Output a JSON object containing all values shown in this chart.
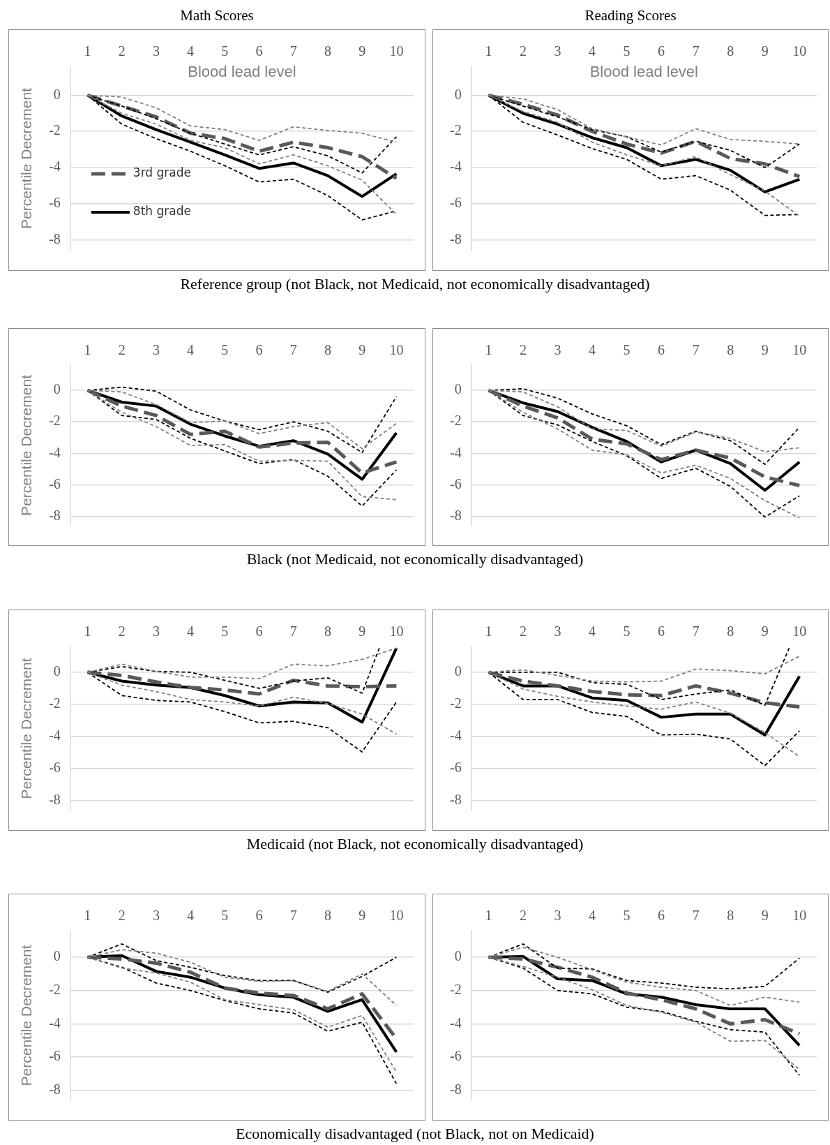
{
  "chart_data": [
    {
      "type": "line",
      "title": "Math Scores",
      "xlabel": "Blood lead level",
      "ylabel": "Percentile Decrement",
      "annotations": [
        "Reference group (not Black, not Medicaid, not economically disadvantaged)"
      ],
      "x": [
        1,
        2,
        3,
        4,
        5,
        6,
        7,
        8,
        9,
        10
      ],
      "xlim": [
        0.5,
        10.5
      ],
      "xticks": [
        1,
        2,
        3,
        4,
        5,
        6,
        7,
        8,
        9,
        10
      ],
      "ylim": [
        -8.6,
        1.6
      ],
      "yticks": [
        0,
        -2,
        -4,
        -6,
        -8
      ],
      "grid": "y",
      "legend": "bottom left",
      "series": [
        {
          "color": "#808080",
          "line_style": "dotted",
          "values": [
            0,
            -0.1,
            -0.7,
            -1.7,
            -1.9,
            -2.5,
            -1.75,
            -1.95,
            -2.1,
            -2.6
          ]
        },
        {
          "color": "#808080",
          "line_style": "dotted",
          "values": [
            0,
            -1.0,
            -1.6,
            -2.5,
            -2.9,
            -3.8,
            -3.3,
            -3.9,
            -4.7,
            -6.6
          ]
        },
        {
          "color": "#000000",
          "line_style": "dotted",
          "values": [
            0,
            -0.6,
            -1.3,
            -2.1,
            -2.7,
            -3.3,
            -2.85,
            -3.35,
            -4.3,
            -2.3
          ]
        },
        {
          "color": "#000000",
          "line_style": "dotted",
          "values": [
            0,
            -1.6,
            -2.4,
            -3.1,
            -3.9,
            -4.8,
            -4.65,
            -5.55,
            -6.9,
            -6.4
          ]
        },
        {
          "name": "3rd grade",
          "color": "#595959",
          "line_style": "dashed",
          "values": [
            0,
            -0.6,
            -1.2,
            -2.1,
            -2.4,
            -3.1,
            -2.6,
            -2.9,
            -3.4,
            -4.6
          ]
        },
        {
          "name": "8th grade",
          "color": "#000000",
          "line_style": "solid",
          "values": [
            0,
            -1.15,
            -1.9,
            -2.6,
            -3.3,
            -4.05,
            -3.75,
            -4.45,
            -5.6,
            -4.35
          ]
        }
      ]
    },
    {
      "type": "line",
      "title": "Reading Scores",
      "xlabel": "Blood lead level",
      "x": [
        1,
        2,
        3,
        4,
        5,
        6,
        7,
        8,
        9,
        10
      ],
      "xlim": [
        0.5,
        10.5
      ],
      "xticks": [
        1,
        2,
        3,
        4,
        5,
        6,
        7,
        8,
        9,
        10
      ],
      "ylim": [
        -8.6,
        1.6
      ],
      "yticks": [
        0,
        -2,
        -4,
        -6,
        -8
      ],
      "grid": "y",
      "series": [
        {
          "color": "#808080",
          "line_style": "dotted",
          "values": [
            0,
            -0.2,
            -0.8,
            -1.85,
            -2.3,
            -2.75,
            -1.85,
            -2.45,
            -2.55,
            -2.7
          ]
        },
        {
          "color": "#808080",
          "line_style": "dotted",
          "values": [
            0,
            -0.9,
            -1.5,
            -2.6,
            -3.3,
            -3.9,
            -3.4,
            -4.4,
            -5.3,
            -6.7
          ]
        },
        {
          "color": "#000000",
          "line_style": "dotted",
          "values": [
            0,
            -0.6,
            -1.2,
            -1.9,
            -2.3,
            -3.15,
            -2.55,
            -3.05,
            -4.0,
            -2.7
          ]
        },
        {
          "color": "#000000",
          "line_style": "dotted",
          "values": [
            0,
            -1.5,
            -2.2,
            -2.95,
            -3.55,
            -4.65,
            -4.45,
            -5.25,
            -6.65,
            -6.6
          ]
        },
        {
          "color": "#595959",
          "line_style": "dashed",
          "values": [
            0,
            -0.5,
            -1.1,
            -2.0,
            -2.7,
            -3.2,
            -2.55,
            -3.5,
            -3.8,
            -4.5
          ]
        },
        {
          "color": "#000000",
          "line_style": "solid",
          "values": [
            0,
            -1.0,
            -1.6,
            -2.35,
            -2.9,
            -3.9,
            -3.55,
            -4.15,
            -5.35,
            -4.65
          ]
        }
      ]
    },
    {
      "type": "line",
      "ylabel": "Percentile Decrement",
      "annotations": [
        "Black (not Medicaid, not economically disadvantaged)"
      ],
      "x": [
        1,
        2,
        3,
        4,
        5,
        6,
        7,
        8,
        9,
        10
      ],
      "xlim": [
        0.5,
        10.5
      ],
      "xticks": [
        1,
        2,
        3,
        4,
        5,
        6,
        7,
        8,
        9,
        10
      ],
      "ylim": [
        -8.6,
        1.6
      ],
      "yticks": [
        0,
        -2,
        -4,
        -6,
        -8
      ],
      "grid": "y",
      "series": [
        {
          "color": "#808080",
          "line_style": "dotted",
          "values": [
            0,
            -0.1,
            -0.9,
            -2.05,
            -1.95,
            -2.75,
            -2.3,
            -2.05,
            -3.7,
            -2.1
          ]
        },
        {
          "color": "#808080",
          "line_style": "dotted",
          "values": [
            0,
            -1.4,
            -2.3,
            -3.5,
            -3.45,
            -4.5,
            -4.45,
            -4.5,
            -6.75,
            -6.95
          ]
        },
        {
          "color": "#000000",
          "line_style": "dotted",
          "values": [
            0,
            0.2,
            -0.05,
            -1.25,
            -1.95,
            -2.5,
            -2.0,
            -2.6,
            -3.95,
            -0.4
          ]
        },
        {
          "color": "#000000",
          "line_style": "dotted",
          "values": [
            0,
            -1.6,
            -1.85,
            -3.05,
            -3.85,
            -4.65,
            -4.4,
            -5.45,
            -7.35,
            -5.05
          ]
        },
        {
          "color": "#595959",
          "line_style": "dashed",
          "values": [
            0,
            -1.0,
            -1.6,
            -2.8,
            -2.6,
            -3.6,
            -3.35,
            -3.3,
            -5.25,
            -4.55
          ]
        },
        {
          "color": "#000000",
          "line_style": "solid",
          "values": [
            0,
            -0.75,
            -1.0,
            -2.15,
            -2.9,
            -3.55,
            -3.2,
            -4.05,
            -5.65,
            -2.7
          ]
        }
      ]
    },
    {
      "type": "line",
      "x": [
        1,
        2,
        3,
        4,
        5,
        6,
        7,
        8,
        9,
        10
      ],
      "xlim": [
        0.5,
        10.5
      ],
      "xticks": [
        1,
        2,
        3,
        4,
        5,
        6,
        7,
        8,
        9,
        10
      ],
      "ylim": [
        -8.6,
        1.6
      ],
      "yticks": [
        0,
        -2,
        -4,
        -6,
        -8
      ],
      "grid": "y",
      "series": [
        {
          "color": "#808080",
          "line_style": "dotted",
          "values": [
            0,
            -0.1,
            -1.05,
            -2.45,
            -2.55,
            -3.55,
            -2.65,
            -3.05,
            -3.9,
            -3.65
          ]
        },
        {
          "color": "#808080",
          "line_style": "dotted",
          "values": [
            0,
            -1.4,
            -2.45,
            -3.8,
            -4.1,
            -5.25,
            -4.75,
            -5.6,
            -7.0,
            -8.1
          ]
        },
        {
          "color": "#000000",
          "line_style": "dotted",
          "values": [
            0,
            0.1,
            -0.5,
            -1.5,
            -2.25,
            -3.45,
            -2.6,
            -3.2,
            -4.7,
            -2.35
          ]
        },
        {
          "color": "#000000",
          "line_style": "dotted",
          "values": [
            0,
            -1.6,
            -2.2,
            -3.25,
            -4.15,
            -5.6,
            -4.95,
            -6.1,
            -8.05,
            -6.7
          ]
        },
        {
          "color": "#595959",
          "line_style": "dashed",
          "values": [
            0,
            -1.0,
            -1.75,
            -3.1,
            -3.4,
            -4.4,
            -3.8,
            -4.3,
            -5.5,
            -6.05
          ]
        },
        {
          "color": "#000000",
          "line_style": "solid",
          "values": [
            0,
            -0.8,
            -1.35,
            -2.35,
            -3.25,
            -4.55,
            -3.8,
            -4.65,
            -6.35,
            -4.55
          ]
        }
      ]
    },
    {
      "type": "line",
      "ylabel": "Percentile Decrement",
      "annotations": [
        "Medicaid (not Black, not economically disadvantaged)"
      ],
      "x": [
        1,
        2,
        3,
        4,
        5,
        6,
        7,
        8,
        9,
        10
      ],
      "xlim": [
        0.5,
        10.5
      ],
      "xticks": [
        1,
        2,
        3,
        4,
        5,
        6,
        7,
        8,
        9,
        10
      ],
      "ylim": [
        -8.6,
        1.6
      ],
      "yticks": [
        0,
        -2,
        -4,
        -6,
        -8
      ],
      "grid": "y",
      "series": [
        {
          "color": "#808080",
          "line_style": "dotted",
          "values": [
            0,
            0.5,
            0.05,
            -0.3,
            -0.3,
            -0.4,
            0.5,
            0.4,
            0.8,
            1.5
          ]
        },
        {
          "color": "#808080",
          "line_style": "dotted",
          "values": [
            0,
            -0.8,
            -1.2,
            -1.7,
            -1.85,
            -2.1,
            -1.55,
            -1.95,
            -2.6,
            -3.85
          ]
        },
        {
          "color": "#000000",
          "line_style": "dotted",
          "x": [
            1,
            2,
            3,
            4,
            5,
            6,
            7,
            8,
            9,
            9.5
          ],
          "values": [
            0,
            0.35,
            0.05,
            0.0,
            -0.5,
            -1.0,
            -0.55,
            -0.35,
            -1.3,
            1.5
          ]
        },
        {
          "color": "#000000",
          "line_style": "dotted",
          "values": [
            0,
            -1.45,
            -1.75,
            -1.85,
            -2.45,
            -3.15,
            -3.05,
            -3.45,
            -4.95,
            -1.85
          ]
        },
        {
          "color": "#595959",
          "line_style": "dashed",
          "values": [
            0,
            -0.2,
            -0.6,
            -0.95,
            -1.1,
            -1.35,
            -0.5,
            -0.85,
            -0.9,
            -0.85
          ]
        },
        {
          "color": "#000000",
          "line_style": "solid",
          "values": [
            0,
            -0.55,
            -0.8,
            -0.95,
            -1.45,
            -2.1,
            -1.85,
            -1.9,
            -3.1,
            1.5
          ]
        }
      ]
    },
    {
      "type": "line",
      "x": [
        1,
        2,
        3,
        4,
        5,
        6,
        7,
        8,
        9,
        10
      ],
      "xlim": [
        0.5,
        10.5
      ],
      "xticks": [
        1,
        2,
        3,
        4,
        5,
        6,
        7,
        8,
        9,
        10
      ],
      "ylim": [
        -8.6,
        1.6
      ],
      "yticks": [
        0,
        -2,
        -4,
        -6,
        -8
      ],
      "grid": "y",
      "series": [
        {
          "color": "#808080",
          "line_style": "dotted",
          "values": [
            0,
            0.15,
            -0.2,
            -0.55,
            -0.6,
            -0.55,
            0.2,
            0.1,
            -0.1,
            1.0
          ]
        },
        {
          "color": "#808080",
          "line_style": "dotted",
          "values": [
            0,
            -1.05,
            -1.5,
            -1.85,
            -2.1,
            -2.3,
            -1.85,
            -2.55,
            -3.75,
            -5.25
          ]
        },
        {
          "color": "#000000",
          "line_style": "dotted",
          "x": [
            1,
            2,
            3,
            4,
            5,
            6,
            7,
            8,
            9,
            9.7
          ],
          "values": [
            0,
            0.0,
            0.0,
            -0.65,
            -0.75,
            -1.7,
            -1.35,
            -1.1,
            -2.05,
            1.5
          ]
        },
        {
          "color": "#000000",
          "line_style": "dotted",
          "values": [
            0,
            -1.7,
            -1.7,
            -2.5,
            -2.75,
            -3.9,
            -3.85,
            -4.15,
            -5.8,
            -3.65
          ]
        },
        {
          "color": "#595959",
          "line_style": "dashed",
          "values": [
            0,
            -0.55,
            -0.85,
            -1.2,
            -1.4,
            -1.45,
            -0.85,
            -1.3,
            -1.9,
            -2.15
          ]
        },
        {
          "color": "#000000",
          "line_style": "solid",
          "values": [
            0,
            -0.85,
            -0.85,
            -1.6,
            -1.75,
            -2.8,
            -2.6,
            -2.6,
            -3.9,
            -0.25
          ]
        }
      ]
    },
    {
      "type": "line",
      "ylabel": "Percentile Decrement",
      "annotations": [
        "Economically disadvantaged (not Black, not on Medicaid)"
      ],
      "x": [
        1,
        2,
        3,
        4,
        5,
        6,
        7,
        8,
        9,
        10
      ],
      "xlim": [
        0.5,
        10.5
      ],
      "xticks": [
        1,
        2,
        3,
        4,
        5,
        6,
        7,
        8,
        9,
        10
      ],
      "ylim": [
        -8.6,
        1.6
      ],
      "yticks": [
        0,
        -2,
        -4,
        -6,
        -8
      ],
      "grid": "y",
      "series": [
        {
          "color": "#808080",
          "line_style": "dotted",
          "values": [
            0,
            0.45,
            0.25,
            -0.3,
            -1.2,
            -1.45,
            -1.4,
            -2.05,
            -1.0,
            -2.9
          ]
        },
        {
          "color": "#808080",
          "line_style": "dotted",
          "values": [
            0,
            -0.65,
            -0.95,
            -1.5,
            -2.55,
            -2.85,
            -3.15,
            -4.2,
            -3.5,
            -6.9
          ]
        },
        {
          "color": "#000000",
          "line_style": "dotted",
          "values": [
            0,
            0.8,
            -0.2,
            -0.6,
            -1.1,
            -1.4,
            -1.4,
            -2.1,
            -1.15,
            0.0
          ]
        },
        {
          "color": "#000000",
          "line_style": "dotted",
          "values": [
            0,
            -0.6,
            -1.55,
            -2.0,
            -2.6,
            -3.1,
            -3.35,
            -4.45,
            -3.9,
            -7.6
          ]
        },
        {
          "color": "#595959",
          "line_style": "dashed",
          "values": [
            0,
            -0.1,
            -0.35,
            -0.9,
            -1.85,
            -2.15,
            -2.3,
            -3.1,
            -2.2,
            -4.9
          ]
        },
        {
          "color": "#000000",
          "line_style": "solid",
          "values": [
            0,
            0.1,
            -0.85,
            -1.2,
            -1.85,
            -2.25,
            -2.4,
            -3.25,
            -2.55,
            -5.7
          ]
        }
      ]
    },
    {
      "type": "line",
      "x": [
        1,
        2,
        3,
        4,
        5,
        6,
        7,
        8,
        9,
        10
      ],
      "xlim": [
        0.5,
        10.5
      ],
      "xticks": [
        1,
        2,
        3,
        4,
        5,
        6,
        7,
        8,
        9,
        10
      ],
      "ylim": [
        -8.6,
        1.6
      ],
      "yticks": [
        0,
        -2,
        -4,
        -6,
        -8
      ],
      "grid": "y",
      "series": [
        {
          "color": "#808080",
          "line_style": "dotted",
          "values": [
            0,
            0.6,
            0.0,
            -0.75,
            -1.5,
            -1.8,
            -2.0,
            -2.9,
            -2.4,
            -2.7
          ]
        },
        {
          "color": "#808080",
          "line_style": "dotted",
          "values": [
            0,
            -0.55,
            -1.2,
            -1.95,
            -2.9,
            -3.3,
            -3.9,
            -5.05,
            -5.0,
            -6.75
          ]
        },
        {
          "color": "#000000",
          "line_style": "dotted",
          "values": [
            0,
            0.8,
            -0.65,
            -0.7,
            -1.4,
            -1.55,
            -1.8,
            -1.9,
            -1.75,
            -0.05
          ]
        },
        {
          "color": "#000000",
          "line_style": "dotted",
          "values": [
            0,
            -0.65,
            -2.0,
            -2.2,
            -3.0,
            -3.25,
            -3.85,
            -4.35,
            -4.5,
            -7.1
          ]
        },
        {
          "color": "#595959",
          "line_style": "dashed",
          "values": [
            0,
            -0.1,
            -0.6,
            -1.2,
            -2.15,
            -2.55,
            -3.1,
            -4.0,
            -3.75,
            -4.6
          ]
        },
        {
          "color": "#000000",
          "line_style": "solid",
          "values": [
            0,
            0.05,
            -1.3,
            -1.4,
            -2.2,
            -2.4,
            -2.85,
            -3.1,
            -3.1,
            -5.3
          ]
        }
      ]
    }
  ]
}
